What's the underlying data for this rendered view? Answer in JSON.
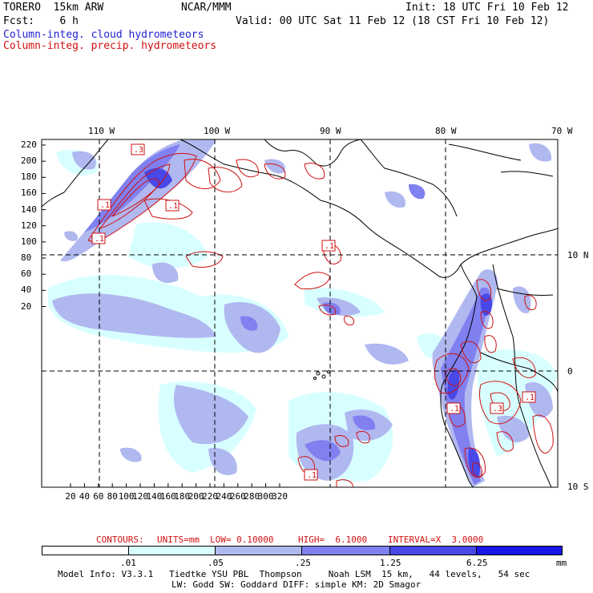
{
  "header": {
    "model": "TORERO  15km ARW",
    "org": "NCAR/MMM",
    "init": "Init: 18 UTC Fri 10 Feb 12",
    "fcst": "Fcst:    6 h",
    "valid": "Valid: 00 UTC Sat 11 Feb 12 (18 CST Fri 10 Feb 12)",
    "legend_cloud": "Column-integ. cloud hydrometeors",
    "legend_precip": "Column-integ. precip. hydrometeors"
  },
  "map": {
    "lon_labels": [
      "110 W",
      "100 W",
      "90 W",
      "80 W",
      "70 W"
    ],
    "lat_labels": [
      "10 N",
      "0",
      "10 S"
    ],
    "y_ticks": [
      "220",
      "200",
      "180",
      "160",
      "140",
      "120",
      "100",
      "80",
      "60",
      "40",
      "20"
    ],
    "x_ticks": [
      "20",
      "40",
      "60",
      "80",
      "100",
      "120",
      "140",
      "160",
      "180",
      "200",
      "220",
      "240",
      "260",
      "280",
      "300",
      "320"
    ],
    "contour_labels": [
      ".3",
      ".1",
      ".1",
      ".1",
      ".1",
      ".1",
      ".3",
      ".1",
      ".1"
    ]
  },
  "contour_info": {
    "contours": "CONTOURS:",
    "units": "UNITS=mm",
    "low": "LOW= 0.10000",
    "high": "HIGH=  6.1000",
    "interval": "INTERVAL=X  3.0000"
  },
  "colorbar": {
    "labels": [
      ".01",
      ".05",
      ".25",
      "1.25",
      "6.25"
    ],
    "unit": "mm",
    "colors": [
      "#ffffff",
      "#d8ffff",
      "#b0b8f0",
      "#8080f0",
      "#4848e8",
      "#1818e8"
    ]
  },
  "footer": {
    "line1": "Model Info: V3.3.1   Tiedtke YSU PBL  Thompson     Noah LSM  15 km,   44 levels,   54 sec",
    "line2": "LW: Godd SW: Goddard DIFF: simple KM: 2D Smagor"
  }
}
